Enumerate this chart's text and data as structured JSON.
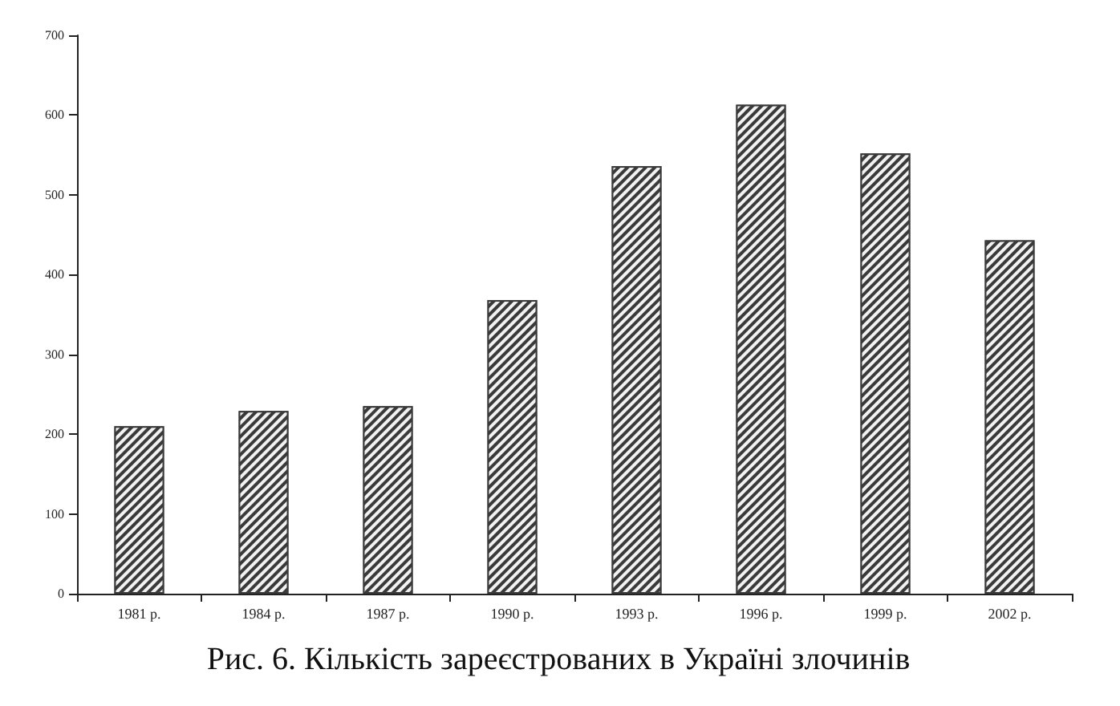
{
  "chart_data": {
    "type": "bar",
    "title": "Рис. 6. Кількість зареєстрованих в Україні злочинів",
    "categories": [
      "1981 р.",
      "1984 р.",
      "1987 р.",
      "1990 р.",
      "1993 р.",
      "1996 р.",
      "1999 р.",
      "2002 р."
    ],
    "values": [
      210,
      229,
      235,
      368,
      536,
      613,
      552,
      443
    ],
    "color": "#3a3a3a",
    "ylim": [
      0,
      700
    ],
    "yticks": [
      0,
      100,
      200,
      300,
      400,
      500,
      600,
      700
    ],
    "grid": false
  }
}
